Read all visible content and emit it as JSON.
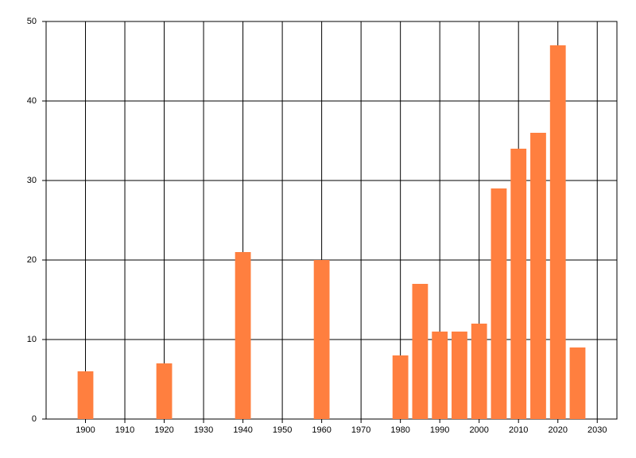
{
  "chart_data": {
    "type": "bar",
    "x": [
      1900,
      1920,
      1940,
      1960,
      1980,
      1985,
      1990,
      1995,
      2000,
      2005,
      2010,
      2015,
      2020,
      2025
    ],
    "values": [
      6,
      7,
      21,
      20,
      8,
      17,
      11,
      11,
      12,
      29,
      34,
      36,
      47,
      9
    ],
    "color": "#ff7f3f",
    "xlim": [
      1890,
      2035
    ],
    "xticks": [
      1900,
      1910,
      1920,
      1930,
      1940,
      1950,
      1960,
      1970,
      1980,
      1990,
      2000,
      2010,
      2020,
      2030
    ],
    "ylim": [
      0,
      50
    ],
    "yticks": [
      0,
      10,
      20,
      30,
      40,
      50
    ],
    "grid": true
  }
}
